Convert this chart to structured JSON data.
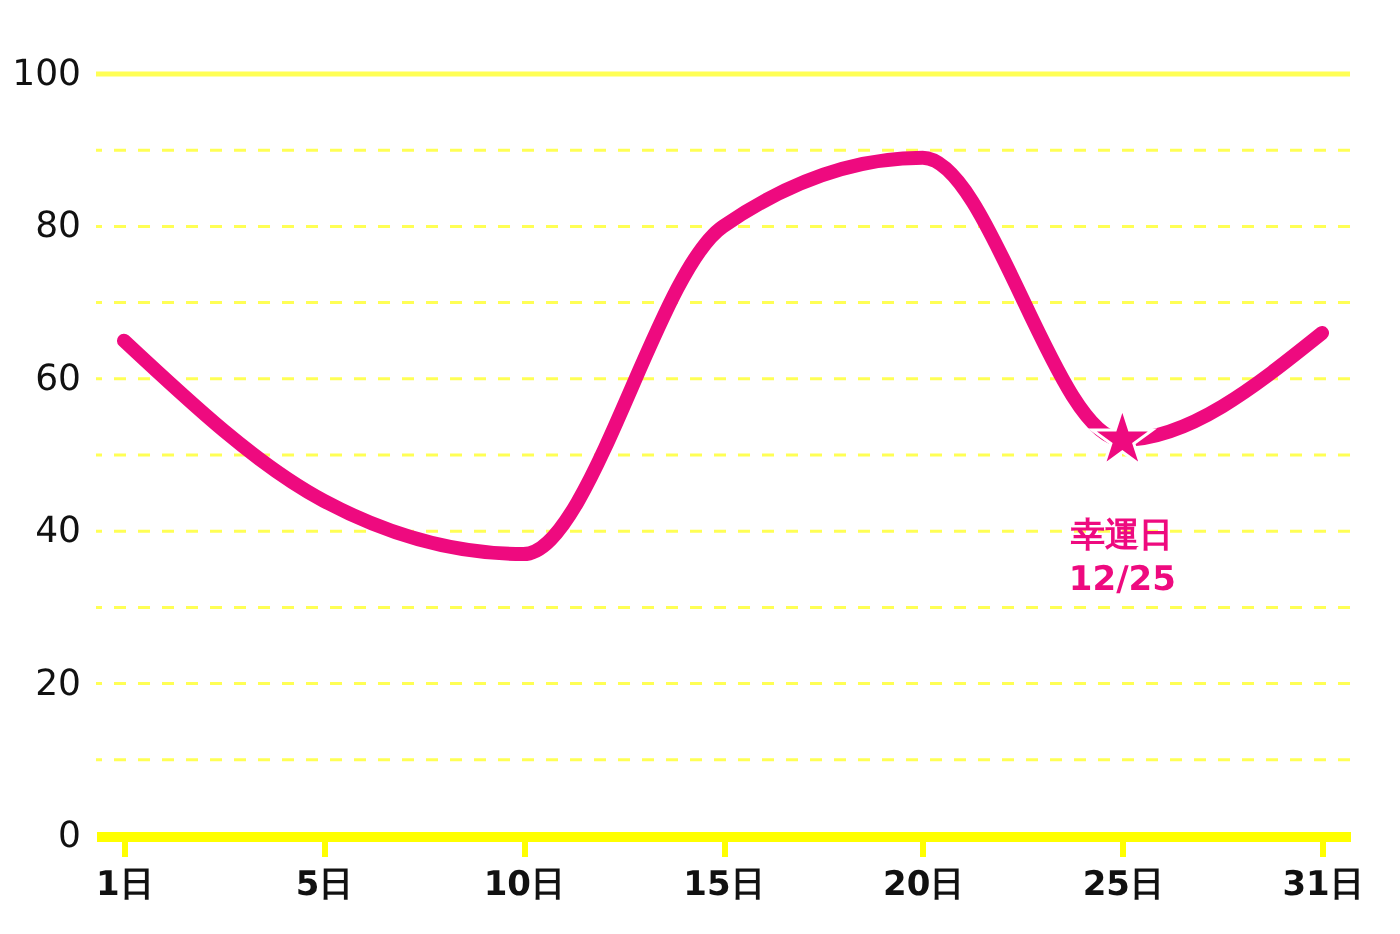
{
  "chart_data": {
    "type": "line",
    "categories": [
      "1日",
      "5日",
      "10日",
      "15日",
      "20日",
      "25日",
      "31日"
    ],
    "series": [
      {
        "color": "#ee0a7f",
        "values": [
          65,
          44,
          37,
          80,
          89,
          52,
          66
        ]
      },
      {
        "type": "scatter",
        "color": "#ee0a7f",
        "marker": "star",
        "x": [
          "25日"
        ],
        "values": [
          52
        ]
      }
    ],
    "ylim": [
      0,
      100
    ],
    "yticks": [
      0,
      {
        "value": 10,
        "label": null
      },
      20,
      {
        "value": 30,
        "label": null
      },
      40,
      {
        "value": 50,
        "label": null
      },
      60,
      {
        "value": 70,
        "label": null
      },
      80,
      {
        "value": 90,
        "label": null
      },
      100
    ],
    "grid": "y",
    "line_style": "solid",
    "annotations": [
      {
        "text": "幸運日\n12/25",
        "x": "25日",
        "y": 52
      }
    ]
  }
}
